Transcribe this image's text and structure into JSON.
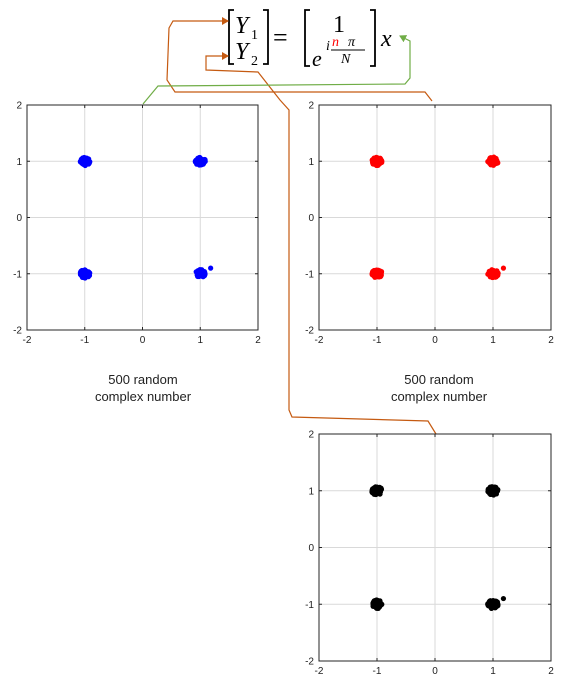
{
  "equation": {
    "lhs_top": "Y",
    "lhs_top_sub": "1",
    "lhs_bottom": "Y",
    "lhs_bottom_sub": "2",
    "equals": "=",
    "rhs_top": "1",
    "rhs_base": "e",
    "rhs_exp_i": "i",
    "rhs_exp_n": "n",
    "rhs_exp_pi": "π",
    "rhs_exp_N": "N",
    "rhs_x": "x"
  },
  "captions": {
    "left_line1": "500 random",
    "left_line2": "complex number",
    "right_line1": "500 random",
    "right_line2": "complex number"
  },
  "colors": {
    "left_points": "#0000ff",
    "right_points": "#ff0000",
    "bottom_points": "#000000",
    "arrow_orange": "#c55a11",
    "arrow_green": "#70ad47",
    "n_red": "#ff0000"
  },
  "chart_data": [
    {
      "type": "scatter",
      "color": "#0000ff",
      "xlim": [
        -2,
        2
      ],
      "ylim": [
        -2,
        2
      ],
      "x_ticks": [
        "-2",
        "-1",
        "0",
        "1",
        "2"
      ],
      "y_ticks": [
        "2",
        "1",
        "0",
        "-1",
        "-2"
      ],
      "grid": true,
      "clusters": [
        {
          "x": -1,
          "y": 1
        },
        {
          "x": 1,
          "y": 1
        },
        {
          "x": -1,
          "y": -1
        },
        {
          "x": 1,
          "y": -1
        }
      ],
      "outliers": [
        {
          "x": 1.18,
          "y": -0.9
        }
      ]
    },
    {
      "type": "scatter",
      "color": "#ff0000",
      "xlim": [
        -2,
        2
      ],
      "ylim": [
        -2,
        2
      ],
      "x_ticks": [
        "-2",
        "-1",
        "0",
        "1",
        "2"
      ],
      "y_ticks": [
        "2",
        "1",
        "0",
        "-1",
        "-2"
      ],
      "grid": true,
      "clusters": [
        {
          "x": -1,
          "y": 1
        },
        {
          "x": 1,
          "y": 1
        },
        {
          "x": -1,
          "y": -1
        },
        {
          "x": 1,
          "y": -1
        }
      ],
      "outliers": [
        {
          "x": 1.18,
          "y": -0.9
        }
      ]
    },
    {
      "type": "scatter",
      "color": "#000000",
      "xlim": [
        -2,
        2
      ],
      "ylim": [
        -2,
        2
      ],
      "x_ticks": [
        "-2",
        "-1",
        "0",
        "1",
        "2"
      ],
      "y_ticks": [
        "2",
        "1",
        "0",
        "-1",
        "-2"
      ],
      "grid": true,
      "clusters": [
        {
          "x": -1,
          "y": 1
        },
        {
          "x": 1,
          "y": 1
        },
        {
          "x": -1,
          "y": -1
        },
        {
          "x": 1,
          "y": -1
        }
      ],
      "outliers": [
        {
          "x": 1.18,
          "y": -0.9
        }
      ]
    }
  ]
}
